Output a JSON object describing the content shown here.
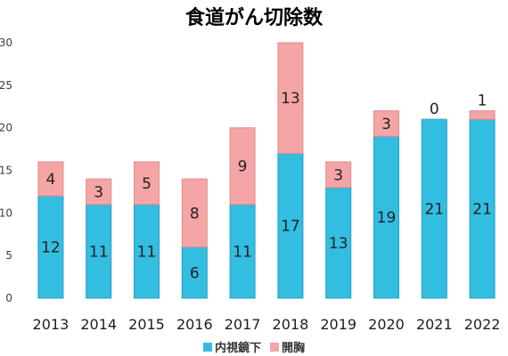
{
  "chart_data": {
    "type": "bar",
    "stacked": true,
    "title": "食道がん切除数",
    "categories": [
      "2013",
      "2014",
      "2015",
      "2016",
      "2017",
      "2018",
      "2019",
      "2020",
      "2021",
      "2022"
    ],
    "series": [
      {
        "name": "内視鏡下",
        "color": "#33bde1",
        "values": [
          12,
          11,
          11,
          6,
          11,
          17,
          13,
          19,
          21,
          21
        ]
      },
      {
        "name": "開胸",
        "color": "#f4a6a6",
        "values": [
          4,
          3,
          5,
          8,
          9,
          13,
          3,
          3,
          0,
          1
        ]
      }
    ],
    "ylim": [
      0,
      30
    ],
    "yticks": [
      0,
      5,
      10,
      15,
      20,
      25,
      30
    ],
    "grid": false,
    "legend_position": "bottom"
  }
}
